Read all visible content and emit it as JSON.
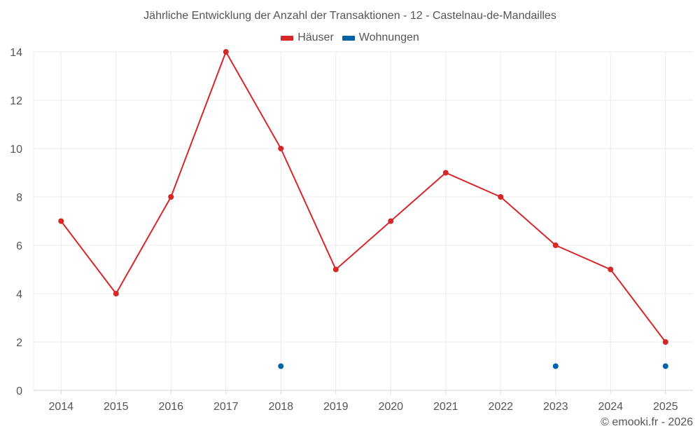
{
  "chart_data": {
    "type": "line",
    "title": "Jährliche Entwicklung der Anzahl der Transaktionen - 12 - Castelnau-de-Mandailles",
    "xlabel": "",
    "ylabel": "",
    "categories": [
      "2014",
      "2015",
      "2016",
      "2017",
      "2018",
      "2019",
      "2020",
      "2021",
      "2022",
      "2023",
      "2024",
      "2025"
    ],
    "series": [
      {
        "name": "Häuser",
        "color": "#d62728",
        "values": [
          7,
          4,
          8,
          14,
          10,
          5,
          7,
          9,
          8,
          6,
          5,
          2
        ]
      },
      {
        "name": "Wohnungen",
        "color": "#0063a6",
        "values": [
          null,
          null,
          null,
          null,
          1,
          null,
          null,
          null,
          null,
          1,
          null,
          1
        ]
      }
    ],
    "ylim": [
      0,
      14
    ],
    "yticks": [
      0,
      2,
      4,
      6,
      8,
      10,
      12,
      14
    ],
    "grid": true,
    "legend_position": "top-center"
  },
  "legend": {
    "items": [
      {
        "label": "Häuser",
        "color": "#d62728"
      },
      {
        "label": "Wohnungen",
        "color": "#0063a6"
      }
    ]
  },
  "credit": "© emooki.fr - 2026"
}
